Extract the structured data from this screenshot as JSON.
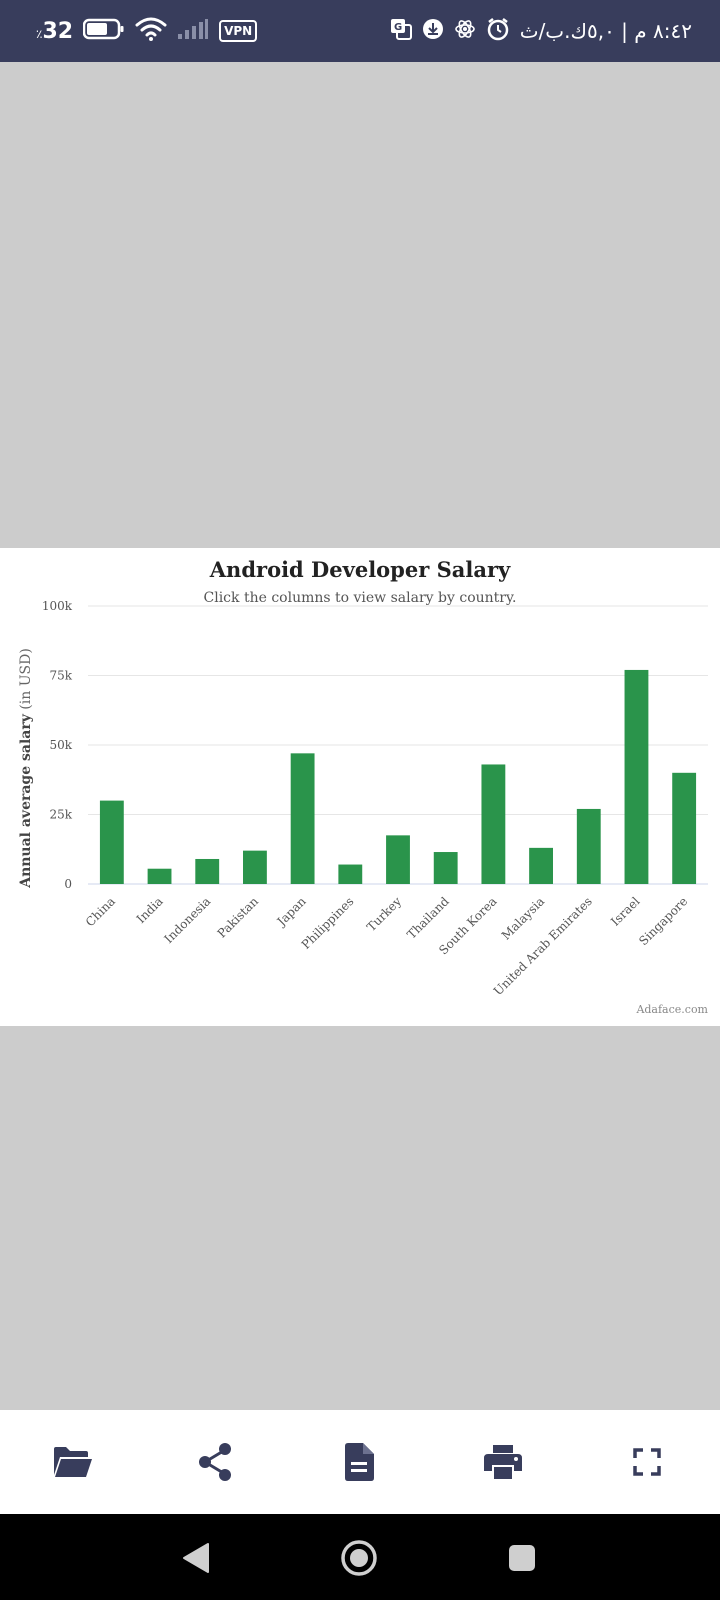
{
  "status_bar": {
    "battery": "32",
    "battery_suffix": "٪",
    "vpn": "VPN",
    "time_date": "٨:٤٢ م | ٥,٠ك.ب/ث"
  },
  "chart_data": {
    "type": "bar",
    "title": "Android Developer Salary",
    "subtitle": "Click the columns to view salary by country.",
    "ylabel": "Annual average salary",
    "ylabel_unit": "(in USD)",
    "xlabel": "",
    "ylim": [
      0,
      100000
    ],
    "yticks": [
      0,
      25000,
      50000,
      75000,
      100000
    ],
    "ytick_labels": [
      "0",
      "25k",
      "50k",
      "75k",
      "100k"
    ],
    "categories": [
      "China",
      "India",
      "Indonesia",
      "Pakistan",
      "Japan",
      "Philippines",
      "Turkey",
      "Thailand",
      "South Korea",
      "Malaysia",
      "United Arab Emirates",
      "Israel",
      "Singapore"
    ],
    "values": [
      30000,
      5500,
      9000,
      12000,
      47000,
      7000,
      17500,
      11500,
      43000,
      13000,
      27000,
      77000,
      40000
    ],
    "bar_color": "#2a944b",
    "grid": true,
    "credit": "Adaface.com"
  },
  "toolbar": {
    "buttons": [
      {
        "name": "open-folder-button",
        "icon": "folder-open-icon"
      },
      {
        "name": "share-button",
        "icon": "share-icon"
      },
      {
        "name": "document-button",
        "icon": "document-icon"
      },
      {
        "name": "print-button",
        "icon": "print-icon"
      },
      {
        "name": "fullscreen-button",
        "icon": "fullscreen-icon"
      }
    ]
  },
  "colors": {
    "status_bar": "#383d5c",
    "icon": "#383d5c",
    "viewer_bg": "#cccccc"
  }
}
